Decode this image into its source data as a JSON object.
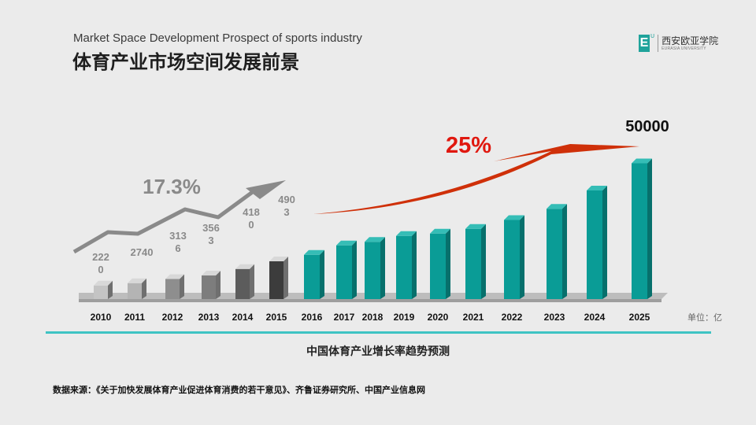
{
  "header": {
    "subtitle_en": "Market Space Development Prospect of sports industry",
    "title_cn": "体育产业市场空间发展前景"
  },
  "logo": {
    "mark": "E",
    "mark_sup": "U",
    "name_cn": "西安欧亚学院",
    "name_en": "EURASIA UNIVERSITY",
    "color": "#20a39b"
  },
  "chart_data": {
    "type": "bar",
    "categories": [
      "2010",
      "2011",
      "2012",
      "2013",
      "2014",
      "2015",
      "2016",
      "2017",
      "2018",
      "2019",
      "2020",
      "2021",
      "2022",
      "2023",
      "2024",
      "2025"
    ],
    "values": [
      2220,
      2740,
      3136,
      3563,
      4180,
      4903,
      6000,
      7000,
      7500,
      8500,
      9000,
      9800,
      11000,
      13000,
      16000,
      50000
    ],
    "bar_heights_visual_fraction": [
      0.115,
      0.135,
      0.17,
      0.2,
      0.255,
      0.32,
      0.375,
      0.455,
      0.485,
      0.535,
      0.555,
      0.595,
      0.67,
      0.765,
      0.92,
      1.15
    ],
    "data_labels": [
      {
        "category": "2010",
        "lines": [
          "222",
          "0"
        ]
      },
      {
        "category": "2011",
        "lines": [
          "2740"
        ]
      },
      {
        "category": "2012",
        "lines": [
          "313",
          "6"
        ]
      },
      {
        "category": "2013",
        "lines": [
          "356",
          "3"
        ]
      },
      {
        "category": "2014",
        "lines": [
          "418",
          "0"
        ]
      },
      {
        "category": "2015",
        "lines": [
          "490",
          "3"
        ]
      },
      {
        "category": "2025",
        "lines": [
          "50000"
        ]
      }
    ],
    "growth_annotations": [
      {
        "label": "17.3%",
        "period": "2010-2015",
        "color": "#8a8a8a"
      },
      {
        "label": "25%",
        "period": "2016-2025",
        "color": "#e0180f"
      }
    ],
    "unit_label": "单位：亿",
    "caption": "中国体育产业增长率趋势预测",
    "colors": {
      "grey_series": [
        "#c4c4c4",
        "#b4b4b4",
        "#8e8e8e",
        "#7d7d7d",
        "#5c5c5c",
        "#3c3c3c"
      ],
      "teal": "#0a9c96",
      "teal_side": "#07706c",
      "teal_top": "#35bdb6",
      "accent_line": "#3ec3c3",
      "arrow_red": "#cf3009"
    }
  },
  "footer": {
    "source": "数据来源：《关于加快发展体育产业促进体育消费的若干意见》、齐鲁证券研究所、中国产业信息网"
  }
}
